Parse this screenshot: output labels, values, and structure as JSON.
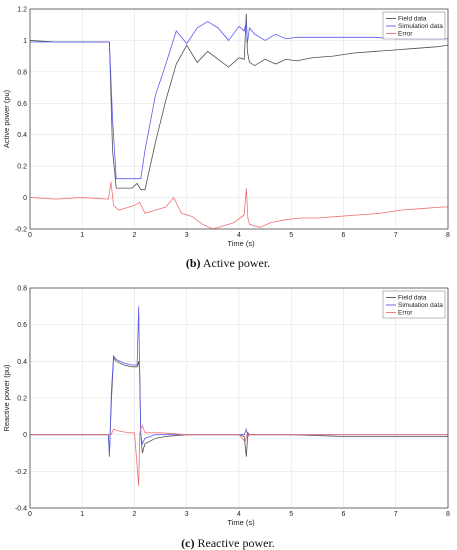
{
  "chart_data": [
    {
      "type": "line",
      "caption_label": "(b)",
      "caption_text": "Active power.",
      "xlabel": "Time (s)",
      "ylabel": "Active power (pu)",
      "xlim": [
        0,
        8
      ],
      "ylim": [
        -0.2,
        1.2
      ],
      "xticks": [
        0,
        1,
        2,
        3,
        4,
        5,
        6,
        7,
        8
      ],
      "yticks": [
        -0.2,
        0,
        0.2,
        0.4,
        0.6,
        0.8,
        1,
        1.2
      ],
      "grid": true,
      "legend_position": "top-right",
      "series": [
        {
          "name": "Field data",
          "color": "#505050",
          "x": [
            0,
            0.5,
            1,
            1.5,
            1.52,
            1.58,
            1.65,
            1.8,
            1.95,
            2.05,
            2.12,
            2.2,
            2.4,
            2.6,
            2.8,
            3.0,
            3.2,
            3.4,
            3.6,
            3.8,
            4.0,
            4.1,
            4.14,
            4.16,
            4.2,
            4.3,
            4.5,
            4.7,
            4.9,
            5.1,
            5.4,
            5.8,
            6.2,
            6.6,
            7.0,
            7.4,
            7.8,
            8.0
          ],
          "y": [
            1.0,
            0.99,
            0.99,
            0.99,
            0.99,
            0.3,
            0.06,
            0.06,
            0.06,
            0.09,
            0.05,
            0.05,
            0.35,
            0.62,
            0.85,
            0.97,
            0.86,
            0.93,
            0.88,
            0.83,
            0.89,
            0.88,
            1.17,
            0.93,
            0.86,
            0.84,
            0.88,
            0.85,
            0.88,
            0.87,
            0.89,
            0.9,
            0.92,
            0.93,
            0.94,
            0.95,
            0.96,
            0.97
          ]
        },
        {
          "name": "Simulation data",
          "color": "#5b5bf0",
          "x": [
            0,
            0.5,
            1,
            1.5,
            1.52,
            1.58,
            1.65,
            1.8,
            1.95,
            2.05,
            2.12,
            2.2,
            2.4,
            2.6,
            2.8,
            3.0,
            3.2,
            3.4,
            3.6,
            3.8,
            4.0,
            4.1,
            4.14,
            4.16,
            4.2,
            4.3,
            4.5,
            4.7,
            4.9,
            5.1,
            5.4,
            5.8,
            6.2,
            6.6,
            7.0,
            7.4,
            7.8,
            8.0
          ],
          "y": [
            0.99,
            0.99,
            0.99,
            0.99,
            0.99,
            0.5,
            0.12,
            0.12,
            0.12,
            0.12,
            0.12,
            0.3,
            0.65,
            0.85,
            1.06,
            0.98,
            1.08,
            1.12,
            1.08,
            1.0,
            1.09,
            1.06,
            1.12,
            0.98,
            1.08,
            1.04,
            1.0,
            1.04,
            1.01,
            1.02,
            1.02,
            1.02,
            1.02,
            1.02,
            1.01,
            1.01,
            1.01,
            1.01
          ]
        },
        {
          "name": "Error",
          "color": "#f07070",
          "x": [
            0,
            0.5,
            1,
            1.5,
            1.55,
            1.6,
            1.7,
            1.9,
            2.0,
            2.1,
            2.2,
            2.4,
            2.6,
            2.75,
            2.9,
            3.1,
            3.3,
            3.5,
            3.7,
            3.9,
            4.1,
            4.14,
            4.17,
            4.2,
            4.4,
            4.6,
            4.9,
            5.2,
            5.5,
            5.9,
            6.3,
            6.7,
            7.1,
            7.5,
            7.9,
            8.0
          ],
          "y": [
            0.0,
            -0.01,
            0.0,
            -0.01,
            0.1,
            -0.05,
            -0.08,
            -0.06,
            -0.05,
            -0.03,
            -0.1,
            -0.08,
            -0.06,
            0.0,
            -0.1,
            -0.12,
            -0.17,
            -0.2,
            -0.18,
            -0.16,
            -0.11,
            0.06,
            -0.13,
            -0.17,
            -0.19,
            -0.16,
            -0.14,
            -0.13,
            -0.13,
            -0.12,
            -0.11,
            -0.1,
            -0.08,
            -0.07,
            -0.06,
            -0.06
          ]
        }
      ]
    },
    {
      "type": "line",
      "caption_label": "(c)",
      "caption_text": "Reactive power.",
      "xlabel": "Time (s)",
      "ylabel": "Reactive power (pu)",
      "xlim": [
        0,
        8
      ],
      "ylim": [
        -0.4,
        0.8
      ],
      "xticks": [
        0,
        1,
        2,
        3,
        4,
        5,
        6,
        7,
        8
      ],
      "yticks": [
        -0.4,
        -0.2,
        0,
        0.2,
        0.4,
        0.6,
        0.8
      ],
      "grid": true,
      "legend_position": "top-right",
      "series": [
        {
          "name": "Field data",
          "color": "#505050",
          "x": [
            0,
            0.5,
            1,
            1.5,
            1.52,
            1.56,
            1.6,
            1.65,
            1.8,
            1.95,
            2.05,
            2.08,
            2.1,
            2.12,
            2.15,
            2.2,
            2.4,
            2.6,
            3.0,
            3.5,
            4.0,
            4.1,
            4.14,
            4.17,
            4.2,
            4.5,
            5.0,
            6.0,
            7.0,
            8.0
          ],
          "y": [
            0.0,
            0.0,
            0.0,
            0.0,
            -0.11,
            0.2,
            0.42,
            0.4,
            0.38,
            0.37,
            0.37,
            0.4,
            0.35,
            0.0,
            -0.1,
            -0.05,
            -0.02,
            -0.01,
            0.0,
            0.0,
            0.0,
            -0.01,
            -0.12,
            0.01,
            0.0,
            0.0,
            0.0,
            -0.01,
            -0.01,
            -0.01
          ]
        },
        {
          "name": "Simulation data",
          "color": "#5b5bf0",
          "x": [
            0,
            0.5,
            1,
            1.5,
            1.52,
            1.56,
            1.6,
            1.65,
            1.8,
            1.95,
            2.05,
            2.08,
            2.1,
            2.12,
            2.15,
            2.2,
            2.4,
            2.6,
            3.0,
            3.5,
            4.0,
            4.1,
            4.14,
            4.17,
            4.2,
            4.5,
            5.0,
            6.0,
            7.0,
            8.0
          ],
          "y": [
            0.0,
            0.0,
            0.0,
            0.0,
            -0.12,
            0.25,
            0.43,
            0.41,
            0.39,
            0.38,
            0.38,
            0.7,
            0.3,
            0.0,
            -0.05,
            -0.02,
            0.0,
            0.0,
            0.0,
            0.0,
            0.0,
            0.0,
            0.03,
            -0.01,
            0.0,
            0.0,
            0.0,
            0.0,
            0.0,
            0.0
          ]
        },
        {
          "name": "Error",
          "color": "#f07070",
          "x": [
            0,
            0.5,
            1,
            1.5,
            1.55,
            1.6,
            1.7,
            1.9,
            2.0,
            2.08,
            2.1,
            2.15,
            2.2,
            2.5,
            3.0,
            3.5,
            4.0,
            4.12,
            4.15,
            4.2,
            5.0,
            6.0,
            7.0,
            8.0
          ],
          "y": [
            0.0,
            0.0,
            0.0,
            0.0,
            0.0,
            0.03,
            0.02,
            0.01,
            0.01,
            -0.28,
            0.01,
            0.05,
            0.01,
            0.01,
            0.0,
            0.0,
            0.0,
            -0.04,
            0.0,
            0.0,
            0.0,
            0.0,
            0.0,
            0.0
          ]
        }
      ]
    }
  ]
}
